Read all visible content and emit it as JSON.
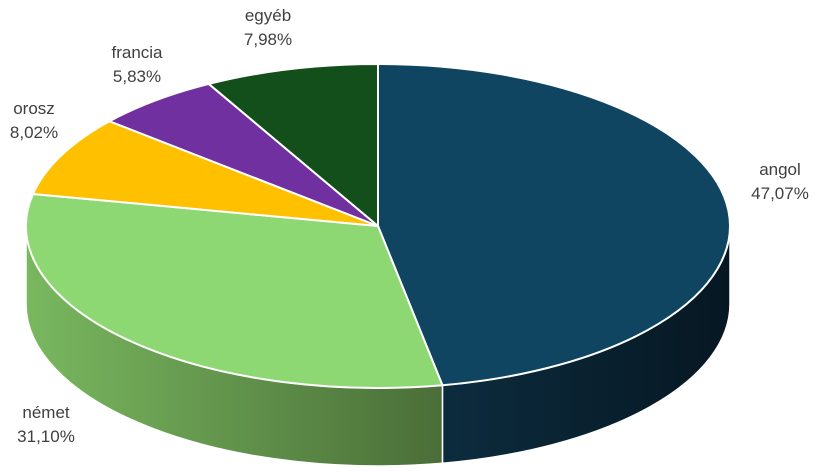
{
  "chart_data": {
    "type": "pie",
    "style": "3d",
    "slices": [
      {
        "name": "angol",
        "value": 47.07,
        "label": "47,07%",
        "color": "#0f4561",
        "side_color": "#0a2230"
      },
      {
        "name": "német",
        "value": 31.1,
        "label": "31,10%",
        "color": "#8ed873",
        "side_color": "#5f8f48"
      },
      {
        "name": "orosz",
        "value": 8.02,
        "label": "8,02%",
        "color": "#ffc000",
        "side_color": "#b38600"
      },
      {
        "name": "francia",
        "value": 5.83,
        "label": "5,83%",
        "color": "#7030a0",
        "side_color": "#4a1f6b"
      },
      {
        "name": "egyéb",
        "value": 7.98,
        "label": "7,98%",
        "color": "#124f1a",
        "side_color": "#0b3010"
      }
    ]
  }
}
